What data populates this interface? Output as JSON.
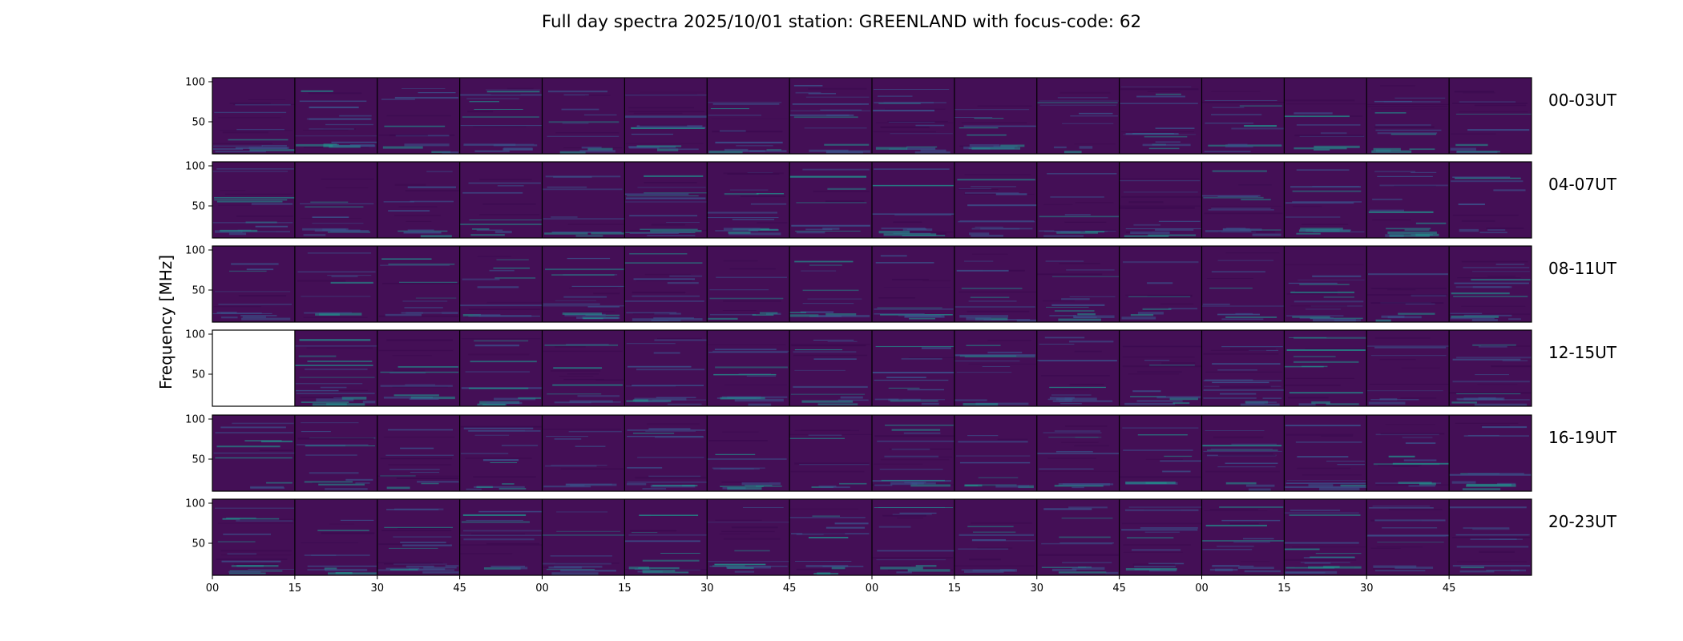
{
  "chart_data": {
    "type": "heatmap",
    "title": "Full day spectra 2025/10/01 station: GREENLAND with focus-code: 62",
    "ylabel": "Frequency [MHz]",
    "xlabel": "",
    "ylim": [
      10,
      105
    ],
    "y_ticks": [
      "100",
      "50"
    ],
    "y_tick_values": [
      100,
      50
    ],
    "x_ticks": [
      "00",
      "15",
      "30",
      "45",
      "00",
      "15",
      "30",
      "45",
      "00",
      "15",
      "30",
      "45",
      "00",
      "15",
      "30",
      "45"
    ],
    "colormap": "viridis",
    "rows": [
      {
        "label": "00-03UT",
        "missing_panels": []
      },
      {
        "label": "04-07UT",
        "missing_panels": []
      },
      {
        "label": "08-11UT",
        "missing_panels": []
      },
      {
        "label": "12-15UT",
        "missing_panels": [
          0
        ]
      },
      {
        "label": "16-19UT",
        "missing_panels": []
      },
      {
        "label": "20-23UT",
        "missing_panels": []
      }
    ],
    "panels_per_row": 16,
    "panel_minutes": 15
  },
  "colors": {
    "background": "#440f56",
    "band": "#3b528b",
    "bright": "#21918c",
    "highlight": "#2fb47c",
    "dark": "#3b0a4f",
    "missing": "#ffffff"
  }
}
